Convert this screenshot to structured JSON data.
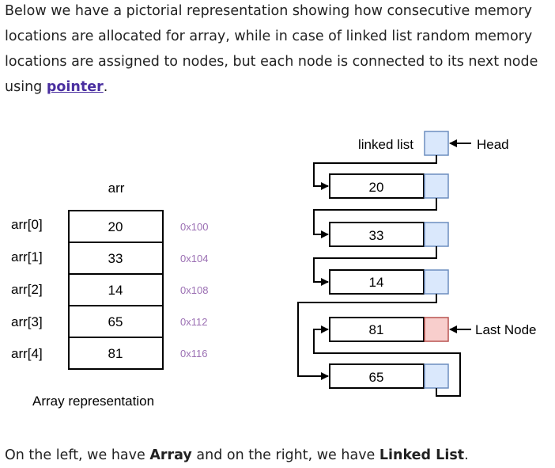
{
  "intro": {
    "text_before_link": "Below we have a pictorial representation showing how consecutive memory locations are allocated for array, while in case of linked list random memory locations are assigned to nodes, but each node is connected to its next node using ",
    "link_text": "pointer",
    "text_after_link": "."
  },
  "array": {
    "name_label": "arr",
    "caption": "Array representation",
    "cells": [
      {
        "index_label": "arr[0]",
        "value": "20",
        "address": "0x100"
      },
      {
        "index_label": "arr[1]",
        "value": "33",
        "address": "0x104"
      },
      {
        "index_label": "arr[2]",
        "value": "14",
        "address": "0x108"
      },
      {
        "index_label": "arr[3]",
        "value": "65",
        "address": "0x112"
      },
      {
        "index_label": "arr[4]",
        "value": "81",
        "address": "0x116"
      }
    ]
  },
  "linked_list": {
    "title": "linked list",
    "head_label": "Head",
    "last_node_label": "Last Node",
    "nodes": [
      {
        "value": "20"
      },
      {
        "value": "33"
      },
      {
        "value": "14"
      },
      {
        "value": "81"
      },
      {
        "value": "65"
      }
    ]
  },
  "outro": {
    "text1": "On the left, we have ",
    "bold1": "Array",
    "text2": " and on the right, we have ",
    "bold2": "Linked List",
    "text3": "."
  },
  "colors": {
    "pointer_cell": "#dae8fc",
    "pointer_cell_border": "#6c8ebf",
    "last_pointer_cell": "#f8cecc",
    "last_pointer_cell_border": "#b85450",
    "address_text": "#9b6fb3",
    "link": "#4a2fa0"
  }
}
